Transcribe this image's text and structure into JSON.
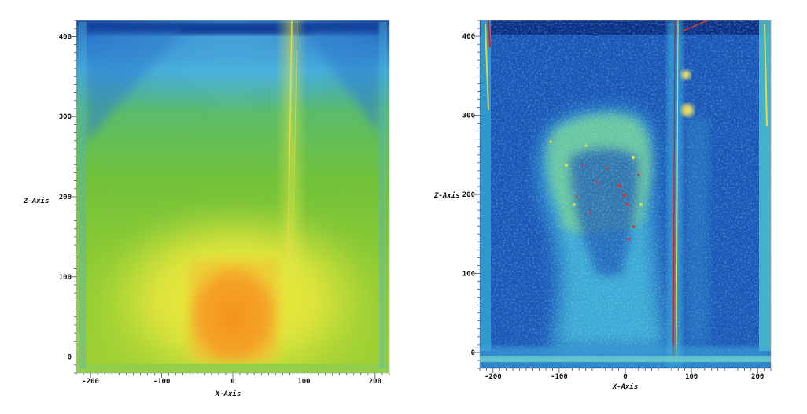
{
  "chart_data": [
    {
      "type": "heatmap",
      "title": "",
      "xlabel": "X-Axis",
      "ylabel": "Z-Axis",
      "xlim": [
        -220,
        220
      ],
      "ylim": [
        -20,
        420
      ],
      "x_ticks": [
        -200,
        -100,
        0,
        100,
        200
      ],
      "y_ticks": [
        0,
        100,
        200,
        300,
        400
      ],
      "x_tick_labels": [
        "-200",
        "-100",
        "0",
        "100",
        "200"
      ],
      "y_tick_labels": [
        "0",
        "100",
        "200",
        "300",
        "400"
      ],
      "colormap": [
        "#0a2f8f",
        "#1a7ed8",
        "#34c3e8",
        "#6fc93a",
        "#f0ea3c",
        "#f39a1f",
        "#d8201a"
      ],
      "features": [
        {
          "kind": "hotspot",
          "x_range": [
            -55,
            55
          ],
          "z_range": [
            0,
            110
          ],
          "color": "#f59a20"
        },
        {
          "kind": "halo",
          "x_range": [
            -110,
            110
          ],
          "z_range": [
            -10,
            180
          ],
          "color": "#eded40"
        },
        {
          "kind": "beam",
          "x": 85,
          "z_range": [
            -10,
            420
          ],
          "color": "#e8e24a"
        },
        {
          "kind": "top_band",
          "z": 410,
          "color": "#0b3a9c"
        }
      ]
    },
    {
      "type": "heatmap",
      "title": "",
      "xlabel": "X-Axis",
      "ylabel": "Z-Axis",
      "xlim": [
        -220,
        220
      ],
      "ylim": [
        -20,
        420
      ],
      "x_ticks": [
        -200,
        -100,
        0,
        100,
        200
      ],
      "y_ticks": [
        0,
        100,
        200,
        300,
        400
      ],
      "x_tick_labels": [
        "-200",
        "-100",
        "0",
        "100",
        "200"
      ],
      "y_tick_labels": [
        "0",
        "100",
        "200",
        "300",
        "400"
      ],
      "colormap": [
        "#0a2f8f",
        "#1a5fc0",
        "#34c3e8",
        "#6fc93a",
        "#f0ea3c",
        "#d8201a"
      ],
      "features": [
        {
          "kind": "plume",
          "shape": "inverted-bell",
          "x_range": [
            -140,
            60
          ],
          "z_range": [
            0,
            320
          ],
          "color": "#5fd0d8"
        },
        {
          "kind": "speckle",
          "x_range": [
            -50,
            20
          ],
          "z_range": [
            150,
            260
          ],
          "color": "#e8302a"
        },
        {
          "kind": "beam",
          "x": 80,
          "z_range": [
            -10,
            420
          ],
          "color": "#d8201a"
        },
        {
          "kind": "spots",
          "x": 95,
          "z": [
            350,
            305
          ],
          "color": "#f0e860"
        },
        {
          "kind": "edge_streaks",
          "x": [
            -205,
            205
          ],
          "color": "#e0d060"
        }
      ]
    }
  ]
}
